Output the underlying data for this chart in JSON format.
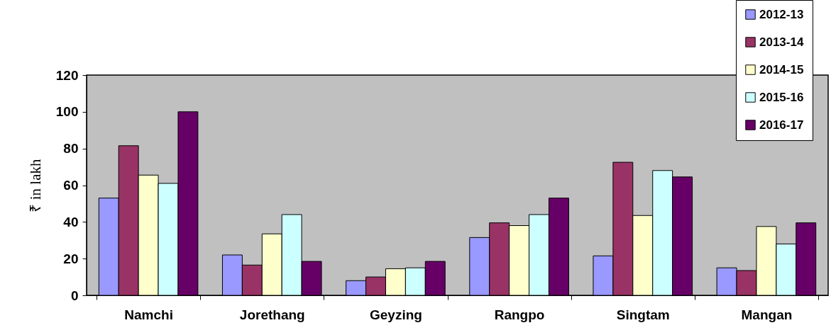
{
  "chart_data": {
    "type": "bar",
    "ylabel": "₹ in lakh",
    "categories": [
      "Namchi",
      "Jorethang",
      "Geyzing",
      "Rangpo",
      "Singtam",
      "Mangan"
    ],
    "series": [
      {
        "name": "2012-13",
        "color": "#9999ff",
        "values": [
          53,
          22,
          8,
          31.5,
          21.5,
          15
        ]
      },
      {
        "name": "2013-14",
        "color": "#993366",
        "values": [
          81.5,
          16.5,
          10,
          39.5,
          72.5,
          13.5
        ]
      },
      {
        "name": "2014-15",
        "color": "#ffffcc",
        "values": [
          65.5,
          33.5,
          14.5,
          38,
          43.5,
          37.5
        ]
      },
      {
        "name": "2015-16",
        "color": "#ccffff",
        "values": [
          61,
          44,
          15,
          44,
          68,
          28
        ]
      },
      {
        "name": "2016-17",
        "color": "#660066",
        "values": [
          100,
          18.5,
          18.5,
          53,
          64.5,
          39.5
        ]
      }
    ],
    "ylim": [
      0,
      120
    ],
    "yticks": [
      0,
      20,
      40,
      60,
      80,
      100,
      120
    ],
    "grid": false,
    "legend": "top right"
  }
}
